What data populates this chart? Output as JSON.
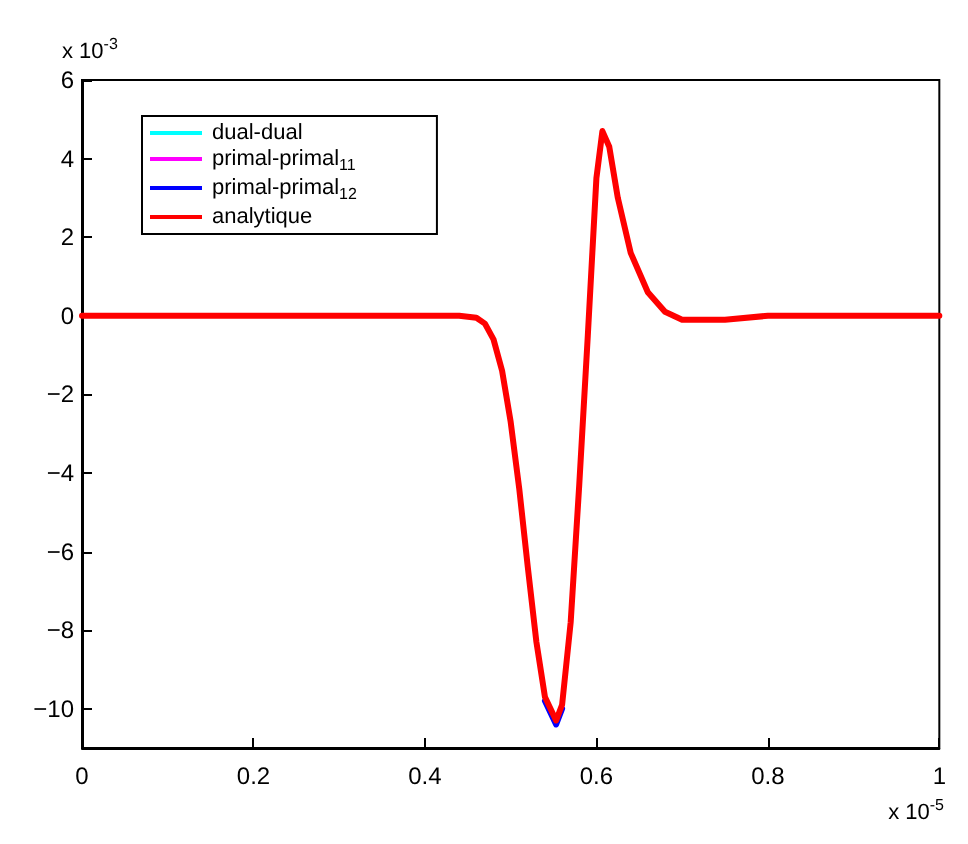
{
  "chart_data": {
    "type": "line",
    "xlim": [
      0,
      1
    ],
    "xticks": [
      0,
      0.2,
      0.4,
      0.6,
      0.8,
      1
    ],
    "ylim": [
      -11,
      6
    ],
    "yticks": [
      -10,
      -8,
      -6,
      -4,
      -2,
      0,
      2,
      4,
      6
    ],
    "grid": false,
    "legend": "top left",
    "marker": "none",
    "line_style": "solid",
    "annotations": [
      "x 10$^{-3}$",
      "x 10$^{-5}$"
    ],
    "x": [
      0,
      0.1,
      0.2,
      0.3,
      0.4,
      0.44,
      0.46,
      0.47,
      0.48,
      0.49,
      0.5,
      0.51,
      0.52,
      0.53,
      0.54,
      0.553,
      0.56,
      0.57,
      0.58,
      0.59,
      0.595,
      0.6,
      0.607,
      0.615,
      0.625,
      0.64,
      0.66,
      0.68,
      0.7,
      0.75,
      0.8,
      0.9,
      1
    ],
    "series": [
      {
        "name": "dual-dual",
        "color": "#00ffff",
        "values": [
          null,
          null,
          null,
          null,
          null,
          null,
          null,
          null,
          null,
          null,
          null,
          null,
          null,
          null,
          null,
          null,
          null,
          null,
          null,
          null,
          null,
          null,
          null,
          null,
          null,
          null,
          null,
          null,
          null,
          null,
          null,
          null,
          null
        ]
      },
      {
        "name": "primal-primal$_{11}$",
        "color": "#ff00ff",
        "values": [
          null,
          null,
          null,
          null,
          null,
          null,
          null,
          null,
          null,
          null,
          null,
          null,
          null,
          null,
          null,
          null,
          null,
          null,
          null,
          null,
          null,
          null,
          null,
          null,
          null,
          null,
          null,
          null,
          null,
          null,
          null,
          null,
          null
        ]
      },
      {
        "name": "primal-primal$_{12}$",
        "color": "#0000ff",
        "values": [
          null,
          null,
          null,
          null,
          null,
          null,
          null,
          null,
          null,
          null,
          null,
          null,
          null,
          null,
          -9.8,
          -10.4,
          -10.0,
          null,
          null,
          null,
          null,
          null,
          null,
          null,
          null,
          null,
          null,
          null,
          null,
          null,
          null,
          null,
          null
        ]
      },
      {
        "name": "analytique",
        "color": "#ff0000",
        "values": [
          0,
          0,
          0,
          0,
          0,
          0,
          -0.05,
          -0.2,
          -0.6,
          -1.4,
          -2.7,
          -4.4,
          -6.4,
          -8.3,
          -9.7,
          -10.3,
          -9.9,
          -7.8,
          -4.3,
          -0.5,
          1.5,
          3.5,
          4.7,
          4.3,
          3.0,
          1.6,
          0.6,
          0.1,
          -0.1,
          -0.1,
          0,
          0,
          0
        ]
      }
    ]
  }
}
